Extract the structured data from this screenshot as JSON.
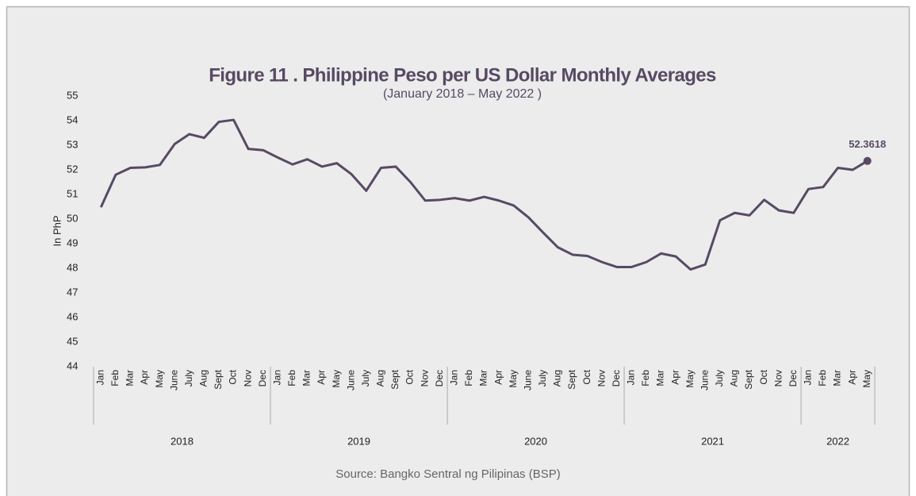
{
  "chart_data": {
    "type": "line",
    "title": "Figure 11 . Philippine Peso per US Dollar Monthly Averages",
    "subtitle": "(January 2018 – May 2022 )",
    "y_label": "In PhP",
    "source": "Source: Bangko Sentral ng Pilipinas (BSP)",
    "groups": [
      {
        "label": "2018",
        "categories": [
          "Jan",
          "Feb",
          "Mar",
          "Apr",
          "May",
          "June",
          "July",
          "Aug",
          "Sept",
          "Oct",
          "Nov",
          "Dec"
        ]
      },
      {
        "label": "2019",
        "categories": [
          "Jan",
          "Feb",
          "Mar",
          "Apr",
          "May",
          "June",
          "July",
          "Aug",
          "Sept",
          "Oct",
          "Nov",
          "Dec"
        ]
      },
      {
        "label": "2020",
        "categories": [
          "Jan",
          "Feb",
          "Mar",
          "Apr",
          "May",
          "June",
          "July",
          "Aug",
          "Sept",
          "Oct",
          "Nov",
          "Dec"
        ]
      },
      {
        "label": "2021",
        "categories": [
          "Jan",
          "Feb",
          "Mar",
          "Apr",
          "May",
          "June",
          "July",
          "Aug",
          "Sept",
          "Oct",
          "Nov",
          "Dec"
        ]
      },
      {
        "label": "2022",
        "categories": [
          "Jan",
          "Feb",
          "Mar",
          "Apr",
          "May"
        ]
      }
    ],
    "series": [
      {
        "color": "#574a63",
        "values": [
          50.48,
          51.8,
          52.08,
          52.1,
          52.2,
          53.05,
          53.45,
          53.3,
          53.95,
          54.03,
          52.85,
          52.8,
          52.5,
          52.22,
          52.43,
          52.13,
          52.27,
          51.82,
          51.15,
          52.08,
          52.13,
          51.5,
          50.75,
          50.78,
          50.85,
          50.75,
          50.9,
          50.75,
          50.55,
          50.07,
          49.45,
          48.85,
          48.55,
          48.5,
          48.25,
          48.05,
          48.05,
          48.25,
          48.6,
          48.48,
          47.95,
          48.15,
          49.95,
          50.25,
          50.15,
          50.78,
          50.35,
          50.25,
          51.22,
          51.3,
          52.08,
          52.0,
          52.3618
        ]
      }
    ],
    "label_last": true,
    "ylim": [
      44,
      55
    ],
    "yticks": [
      44,
      45,
      46,
      47,
      48,
      49,
      50,
      51,
      52,
      53,
      54,
      55
    ],
    "grid": false
  }
}
